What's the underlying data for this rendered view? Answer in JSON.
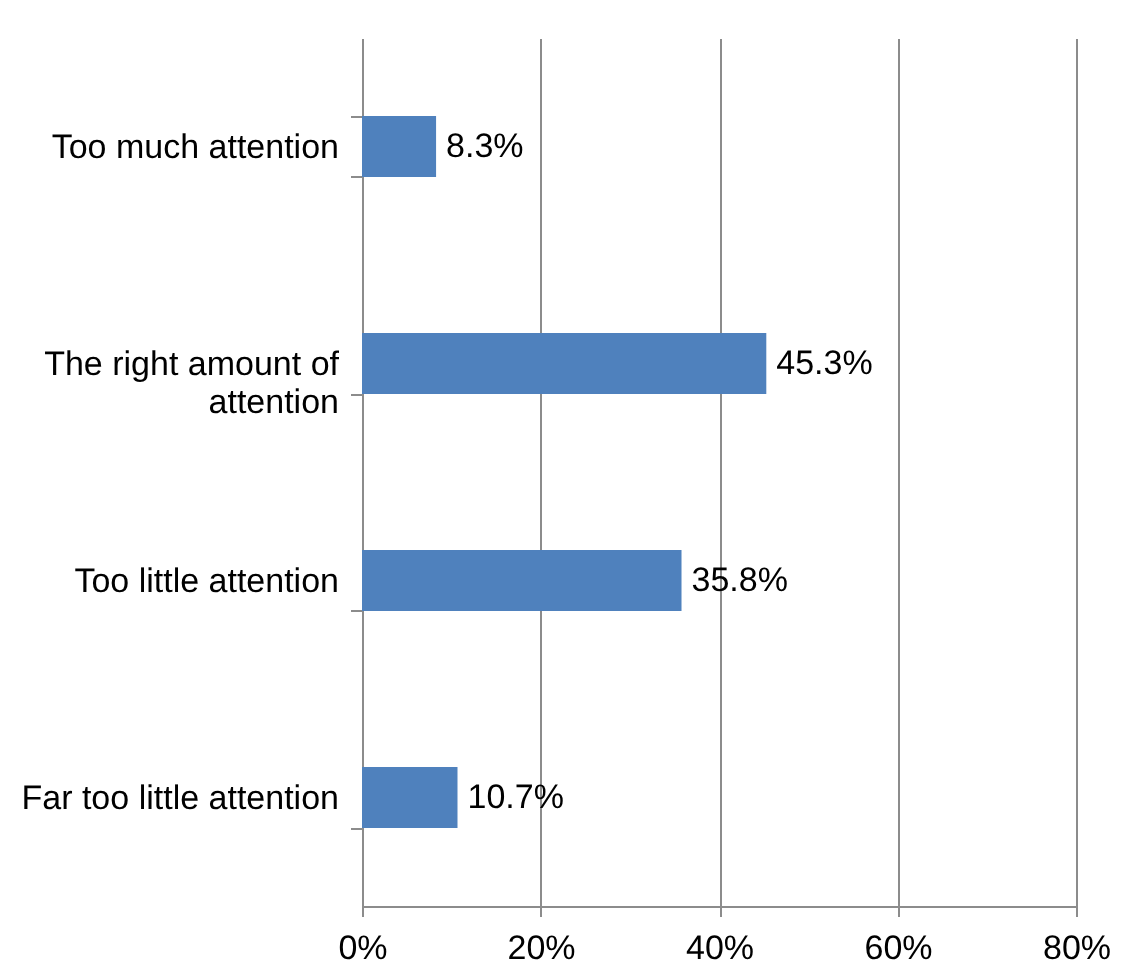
{
  "chart_data": {
    "type": "bar",
    "orientation": "horizontal",
    "categories": [
      "Too much attention",
      "The right amount of attention",
      "Too little attention",
      "Far too little attention"
    ],
    "values": [
      8.3,
      45.3,
      35.8,
      10.7
    ],
    "value_labels": [
      "8.3%",
      "45.3%",
      "35.8%",
      "10.7%"
    ],
    "color": "#4f81bd",
    "xlim": [
      0,
      80
    ],
    "xticks": [
      {
        "value": 0,
        "label": "0%"
      },
      {
        "value": 20,
        "label": "20%"
      },
      {
        "value": 40,
        "label": "40%"
      },
      {
        "value": 60,
        "label": "60%"
      },
      {
        "value": 80,
        "label": "80%"
      }
    ],
    "grid": "x"
  }
}
